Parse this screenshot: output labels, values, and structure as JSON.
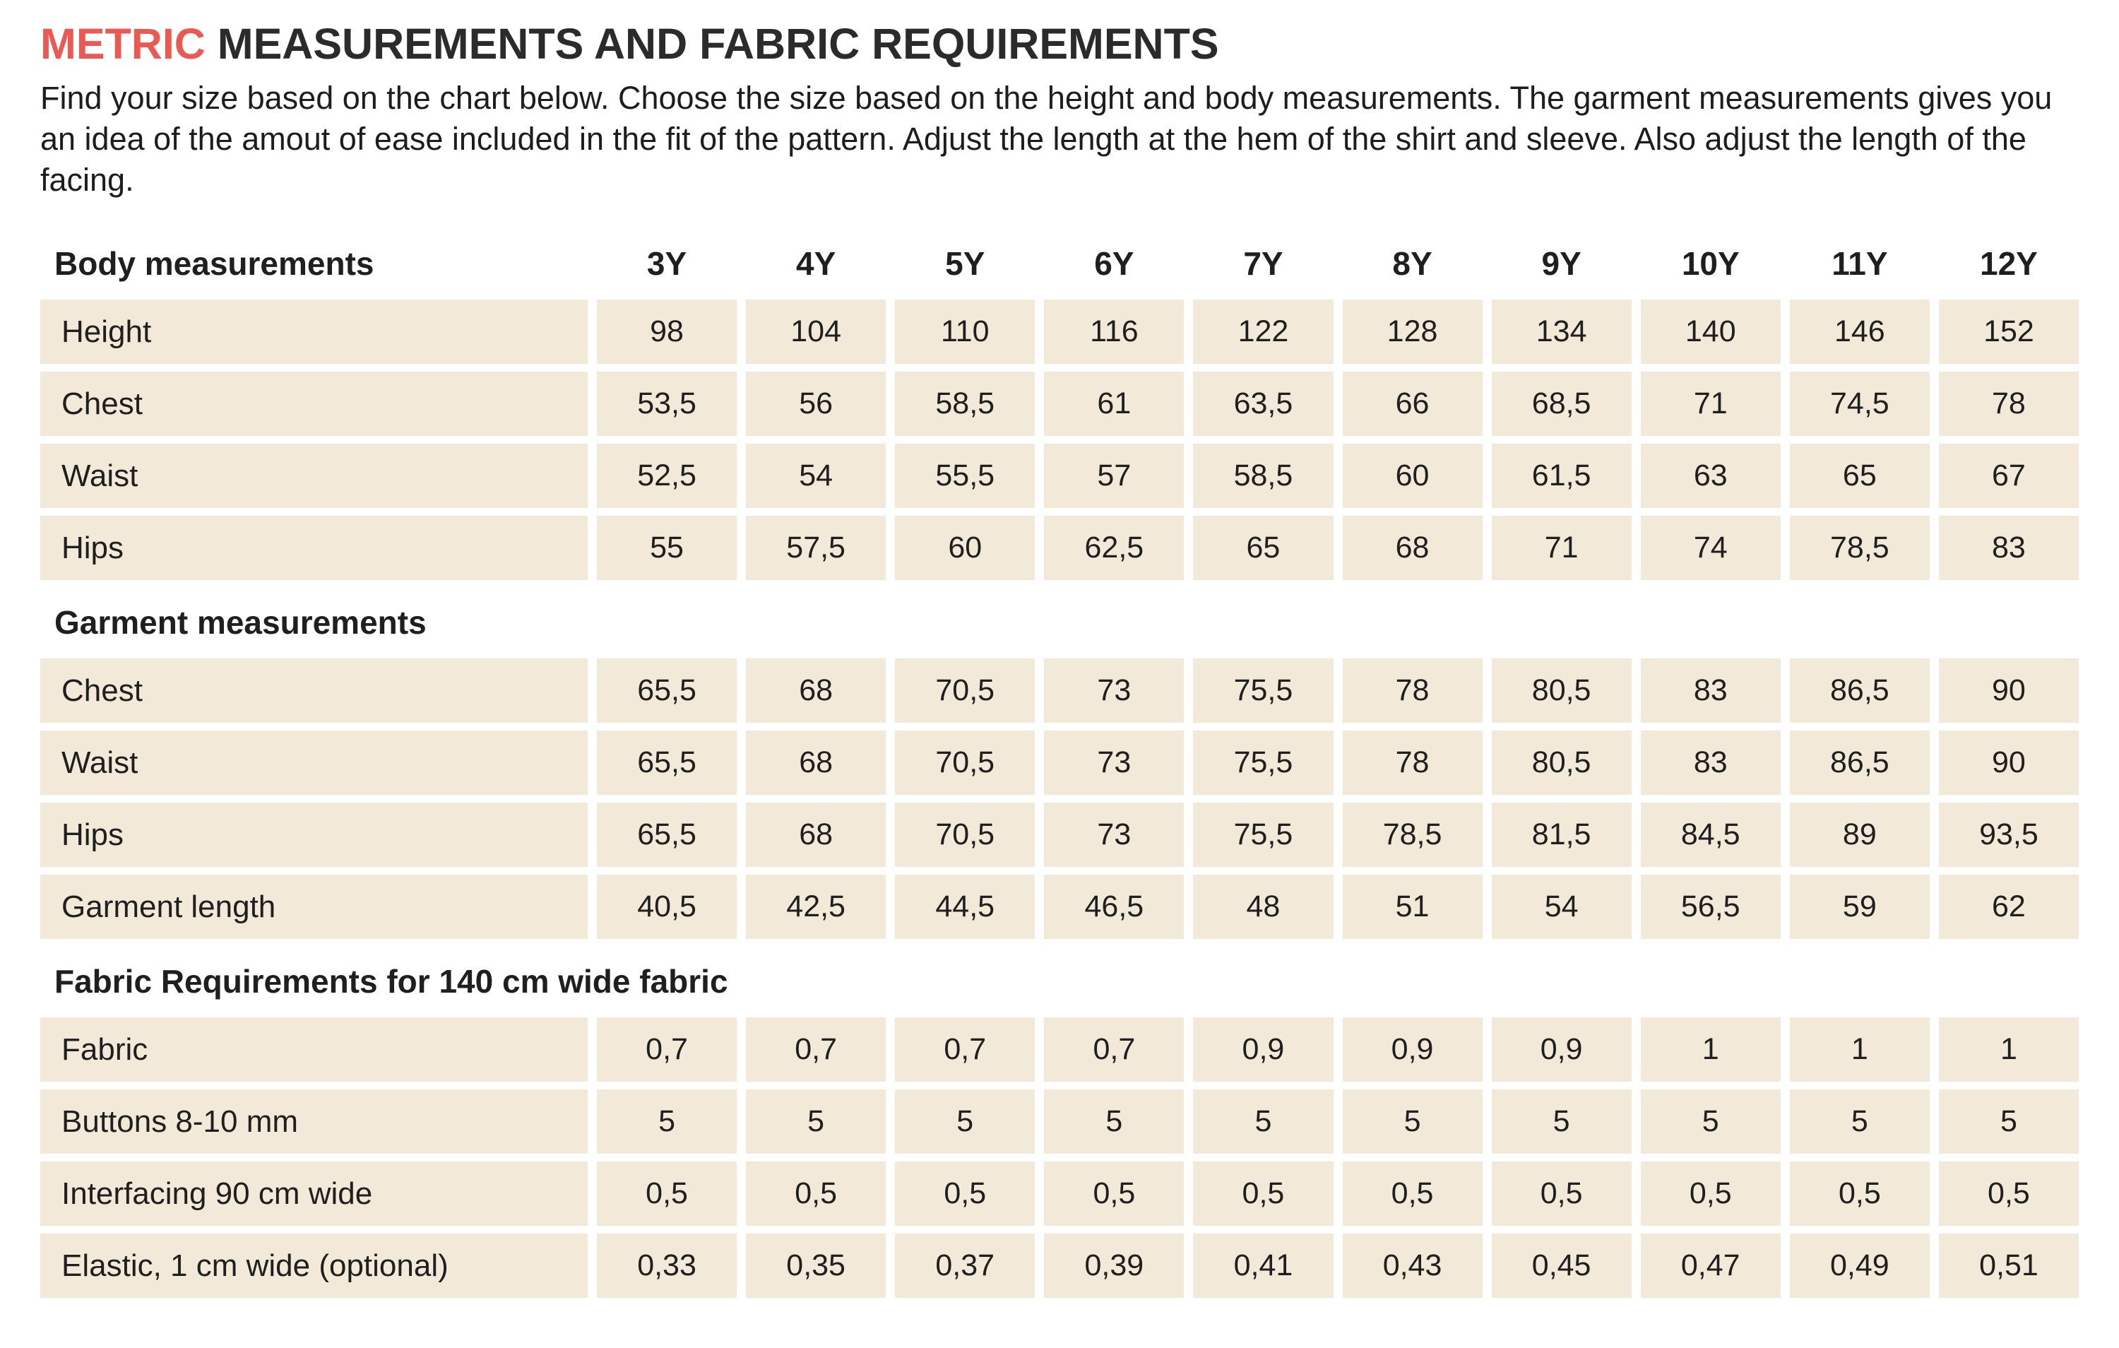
{
  "title": {
    "highlight": "METRIC",
    "rest": " MEASUREMENTS AND FABRIC REQUIREMENTS"
  },
  "intro": "Find your size based on the chart below. Choose the size based on the height and body measurements. The garment measurements gives you an idea of the amout of ease included in the fit of the pattern. Adjust the length at the hem of the shirt and sleeve. Also adjust the length of the facing.",
  "sizes": [
    "3Y",
    "4Y",
    "5Y",
    "6Y",
    "7Y",
    "8Y",
    "9Y",
    "10Y",
    "11Y",
    "12Y"
  ],
  "sections": [
    {
      "heading": "Body measurements",
      "rows": [
        {
          "label": "Height",
          "values": [
            "98",
            "104",
            "110",
            "116",
            "122",
            "128",
            "134",
            "140",
            "146",
            "152"
          ]
        },
        {
          "label": "Chest",
          "values": [
            "53,5",
            "56",
            "58,5",
            "61",
            "63,5",
            "66",
            "68,5",
            "71",
            "74,5",
            "78"
          ]
        },
        {
          "label": "Waist",
          "values": [
            "52,5",
            "54",
            "55,5",
            "57",
            "58,5",
            "60",
            "61,5",
            "63",
            "65",
            "67"
          ]
        },
        {
          "label": "Hips",
          "values": [
            "55",
            "57,5",
            "60",
            "62,5",
            "65",
            "68",
            "71",
            "74",
            "78,5",
            "83"
          ]
        }
      ]
    },
    {
      "heading": "Garment measurements",
      "rows": [
        {
          "label": "Chest",
          "values": [
            "65,5",
            "68",
            "70,5",
            "73",
            "75,5",
            "78",
            "80,5",
            "83",
            "86,5",
            "90"
          ]
        },
        {
          "label": "Waist",
          "values": [
            "65,5",
            "68",
            "70,5",
            "73",
            "75,5",
            "78",
            "80,5",
            "83",
            "86,5",
            "90"
          ]
        },
        {
          "label": "Hips",
          "values": [
            "65,5",
            "68",
            "70,5",
            "73",
            "75,5",
            "78,5",
            "81,5",
            "84,5",
            "89",
            "93,5"
          ]
        },
        {
          "label": "Garment length",
          "values": [
            "40,5",
            "42,5",
            "44,5",
            "46,5",
            "48",
            "51",
            "54",
            "56,5",
            "59",
            "62"
          ]
        }
      ]
    },
    {
      "heading": "Fabric Requirements for 140 cm wide fabric",
      "rows": [
        {
          "label": "Fabric",
          "values": [
            "0,7",
            "0,7",
            "0,7",
            "0,7",
            "0,9",
            "0,9",
            "0,9",
            "1",
            "1",
            "1"
          ]
        },
        {
          "label": "Buttons 8-10 mm",
          "values": [
            "5",
            "5",
            "5",
            "5",
            "5",
            "5",
            "5",
            "5",
            "5",
            "5"
          ]
        },
        {
          "label": "Interfacing 90 cm wide",
          "values": [
            "0,5",
            "0,5",
            "0,5",
            "0,5",
            "0,5",
            "0,5",
            "0,5",
            "0,5",
            "0,5",
            "0,5"
          ]
        },
        {
          "label": "Elastic, 1 cm wide (optional)",
          "values": [
            "0,33",
            "0,35",
            "0,37",
            "0,39",
            "0,41",
            "0,43",
            "0,45",
            "0,47",
            "0,49",
            "0,51"
          ]
        }
      ]
    }
  ],
  "colors": {
    "accent": "#ea5a52",
    "cell_background": "#f2e9d8",
    "text": "#1f1f1f"
  }
}
